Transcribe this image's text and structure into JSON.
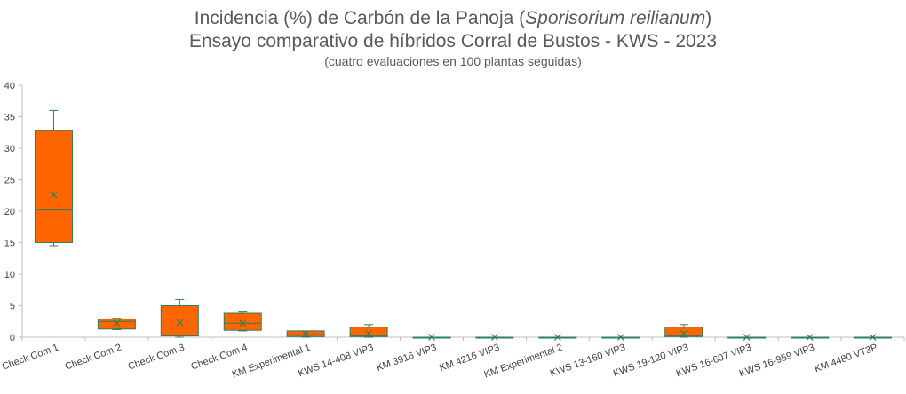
{
  "chart_data": {
    "type": "box",
    "title_prefix": "Incidencia (%) de Carbón de la Panoja (",
    "title_italic": "Sporisorium reilianum",
    "title_suffix": ")",
    "subtitle": "Ensayo comparativo de híbridos Corral de Bustos - KWS - 2023",
    "note": "(cuatro evaluaciones en 100 plantas seguidas)",
    "ylim": [
      0,
      40
    ],
    "yticks": [
      "0",
      "5",
      "10",
      "15",
      "20",
      "25",
      "30",
      "35",
      "40"
    ],
    "colors": {
      "box_fill": "#FF6600",
      "box_stroke": "#2E7D5B",
      "axis": "#BFBFBF"
    },
    "categories": [
      "Check Com 1",
      "Check Com 2",
      "Check Com 3",
      "Check Com 4",
      "KM Experimental 1",
      "KWS 14-408 VIP3",
      "KM 3916 VIP3",
      "KM 4216 VIP3",
      "KM Experimental 2",
      "KWS 13-160 VIP3",
      "KWS 19-120 VIP3",
      "KWS 16-607 VIP3",
      "KWS 16-959 VIP3",
      "KM 4480 VT3P"
    ],
    "boxes": [
      {
        "min": 14.5,
        "q1": 15.0,
        "median": 20.2,
        "q3": 32.8,
        "max": 36.0,
        "mean": 22.6
      },
      {
        "min": 1.2,
        "q1": 1.3,
        "median": 2.5,
        "q3": 2.9,
        "max": 3.0,
        "mean": 2.2
      },
      {
        "min": 0.0,
        "q1": 0.2,
        "median": 1.6,
        "q3": 5.0,
        "max": 6.0,
        "mean": 2.3
      },
      {
        "min": 1.0,
        "q1": 1.1,
        "median": 2.2,
        "q3": 3.8,
        "max": 4.0,
        "mean": 2.2
      },
      {
        "min": 0.0,
        "q1": 0.1,
        "median": 0.4,
        "q3": 1.0,
        "max": 1.0,
        "mean": 0.5
      },
      {
        "min": 0.0,
        "q1": 0.1,
        "median": 0.2,
        "q3": 1.6,
        "max": 2.0,
        "mean": 0.6
      },
      {
        "min": 0,
        "q1": 0,
        "median": 0,
        "q3": 0,
        "max": 0,
        "mean": 0
      },
      {
        "min": 0,
        "q1": 0,
        "median": 0,
        "q3": 0,
        "max": 0,
        "mean": 0
      },
      {
        "min": 0,
        "q1": 0,
        "median": 0,
        "q3": 0,
        "max": 0,
        "mean": 0
      },
      {
        "min": 0,
        "q1": 0,
        "median": 0,
        "q3": 0,
        "max": 0,
        "mean": 0
      },
      {
        "min": 0.0,
        "q1": 0.1,
        "median": 0.2,
        "q3": 1.6,
        "max": 2.0,
        "mean": 0.6
      },
      {
        "min": 0,
        "q1": 0,
        "median": 0,
        "q3": 0,
        "max": 0,
        "mean": 0
      },
      {
        "min": 0,
        "q1": 0,
        "median": 0,
        "q3": 0,
        "max": 0,
        "mean": 0
      },
      {
        "min": 0,
        "q1": 0,
        "median": 0,
        "q3": 0,
        "max": 0,
        "mean": 0
      }
    ]
  }
}
